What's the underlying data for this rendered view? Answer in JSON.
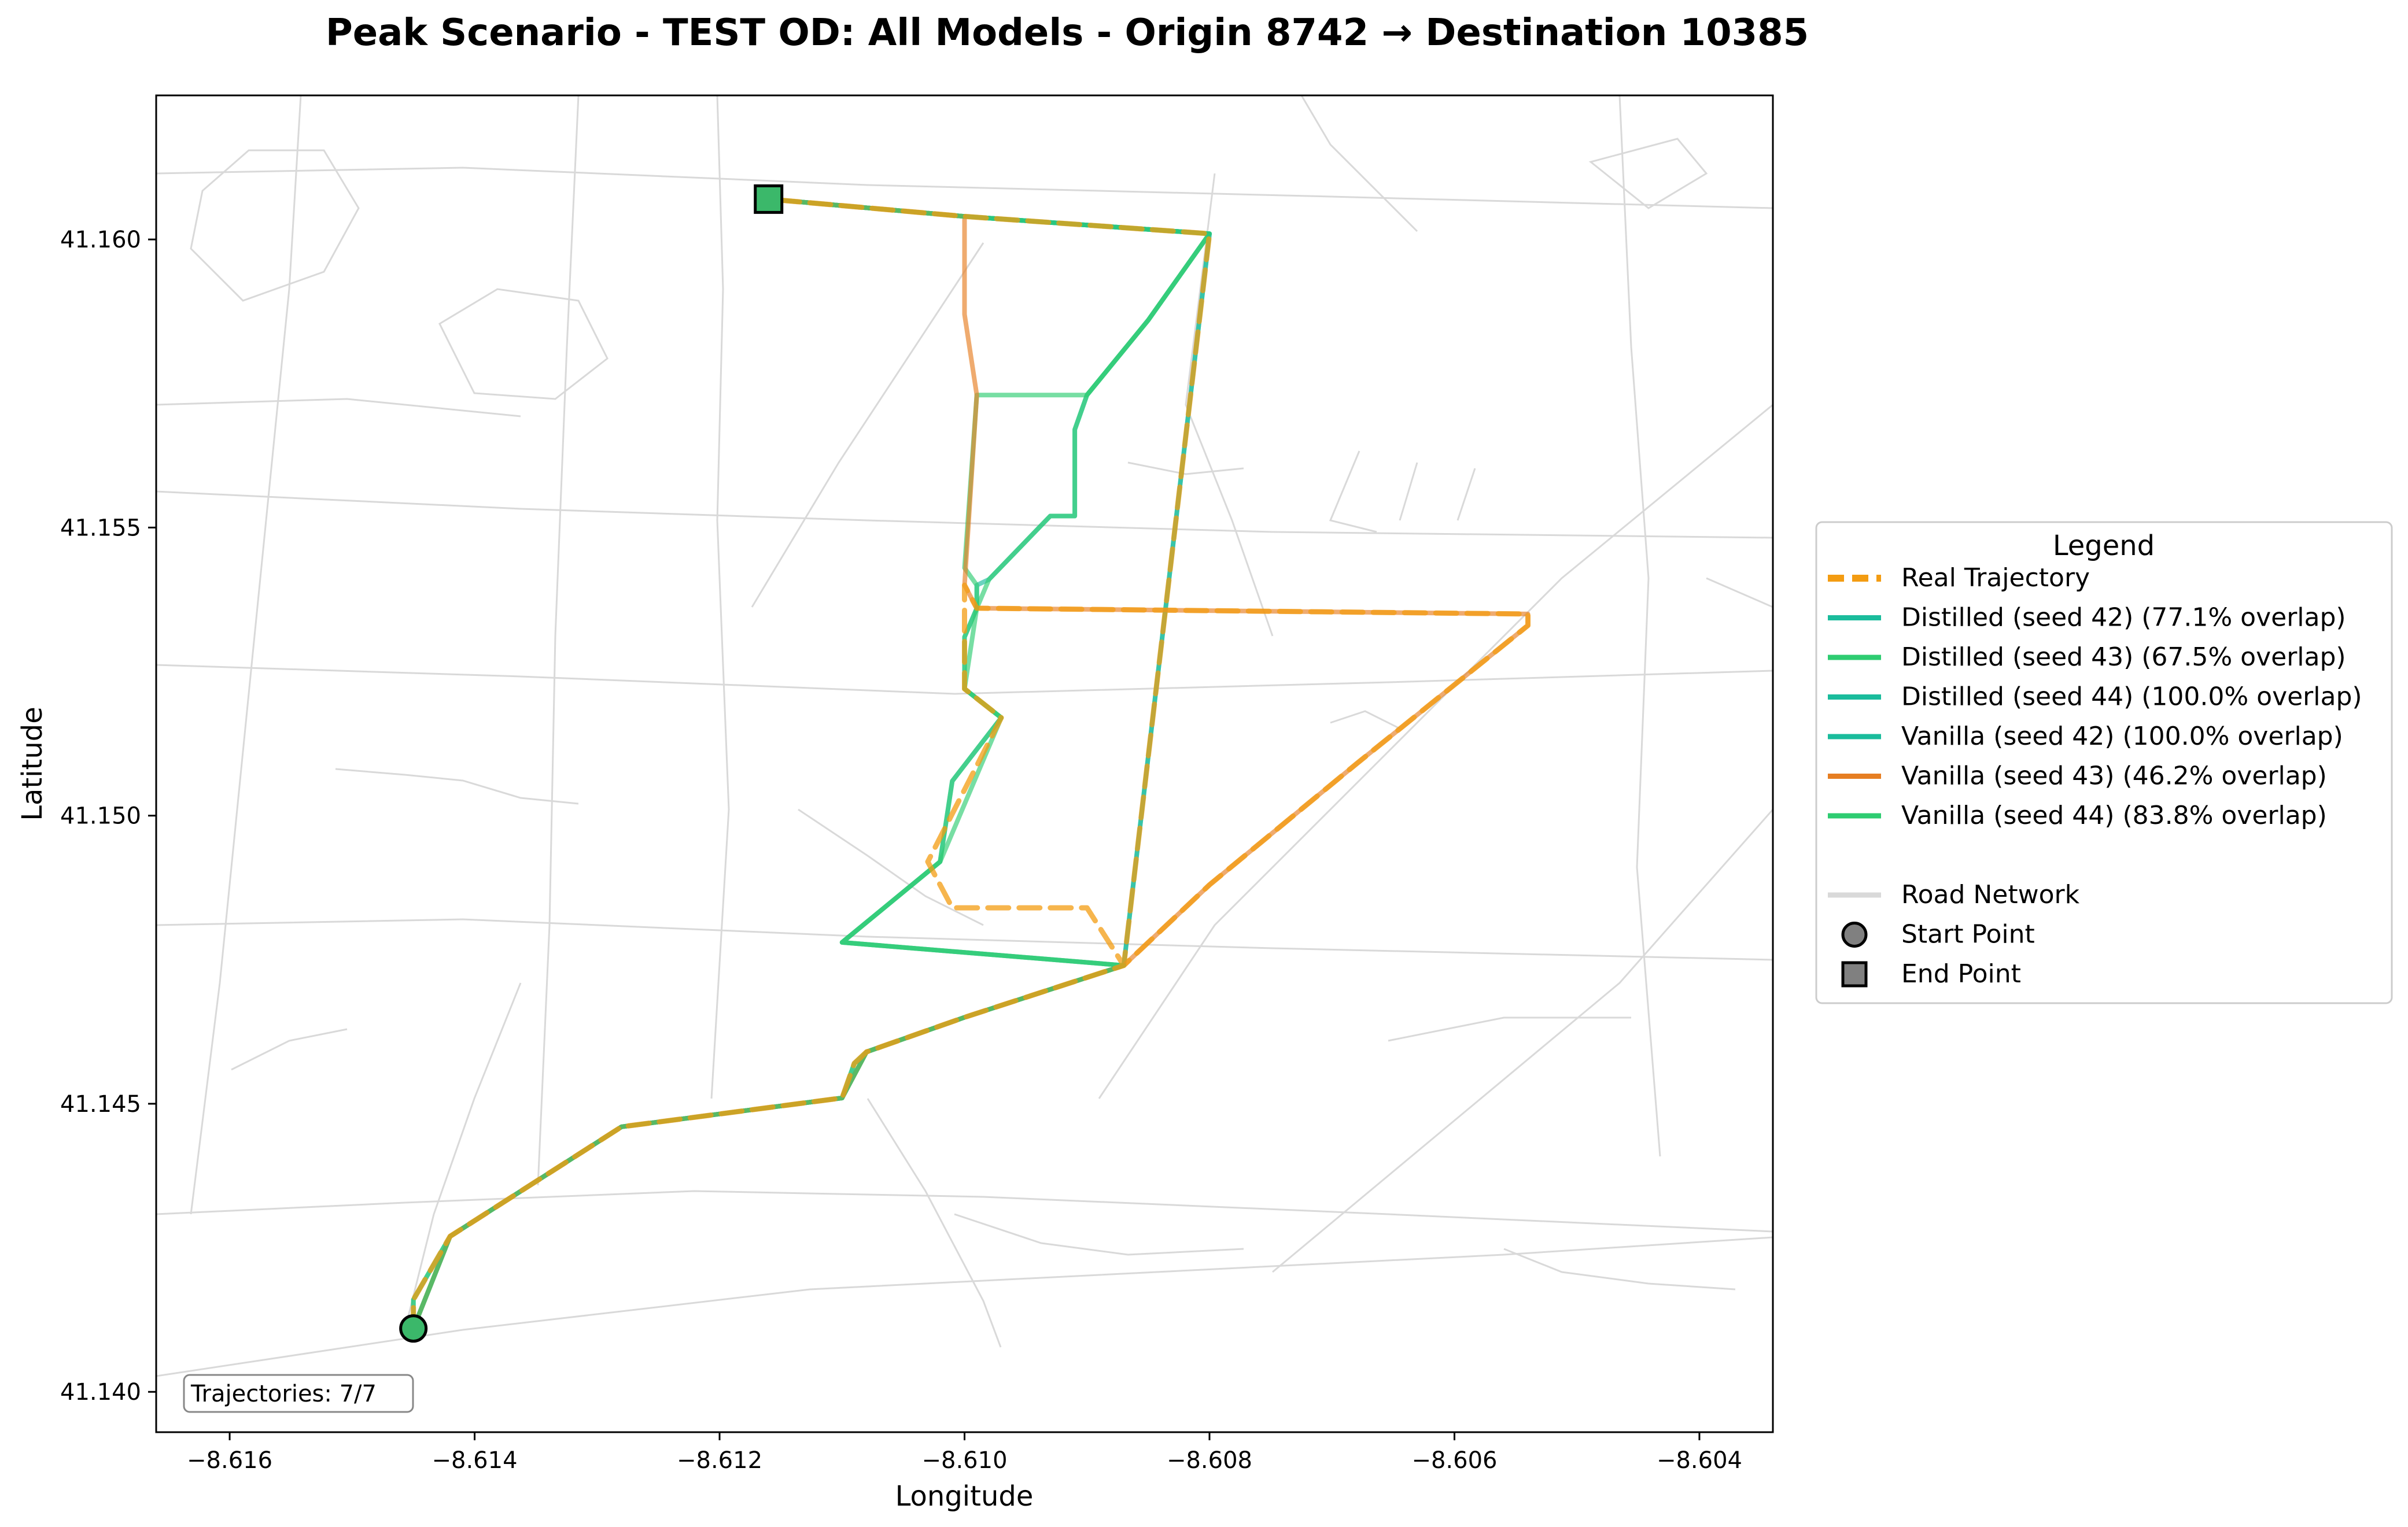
{
  "chart_data": {
    "type": "line",
    "title": "Peak Scenario - TEST OD: All Models - Origin 8742 → Destination 10385",
    "xlabel": "Longitude",
    "ylabel": "Latitude",
    "xlim": [
      -8.6166,
      -8.6034
    ],
    "ylim": [
      41.1393,
      41.1625
    ],
    "xticks": [
      -8.616,
      -8.614,
      -8.612,
      -8.61,
      -8.608,
      -8.606,
      -8.604
    ],
    "xtick_labels": [
      "−8.616",
      "−8.614",
      "−8.612",
      "−8.610",
      "−8.608",
      "−8.606",
      "−8.604"
    ],
    "yticks": [
      41.14,
      41.145,
      41.15,
      41.155,
      41.16
    ],
    "ytick_labels": [
      "41.140",
      "41.145",
      "41.150",
      "41.155",
      "41.160"
    ],
    "grid": false,
    "legend_placement": "right-outside",
    "legend_title": "Legend",
    "trajectory_count_label": "Trajectories: 7/7",
    "start": {
      "label": "Start Point",
      "x": -8.6145,
      "y": 41.1411
    },
    "end": {
      "label": "End Point",
      "x": -8.6116,
      "y": 41.1607
    },
    "road_label": "Road Network",
    "road_color": "#d9d9d9",
    "marker_color": "#3bb86a",
    "series": [
      {
        "name": "Real Trajectory",
        "color": "#f39c12",
        "dashed": true,
        "x": [
          -8.6145,
          -8.6145,
          -8.6142,
          -8.6128,
          -8.611,
          -8.6109,
          -8.6108,
          -8.61,
          -8.6087,
          -8.609,
          -8.6101,
          -8.6103,
          -8.6097,
          -8.61,
          -8.61,
          -8.61,
          -8.61,
          -8.6099,
          -8.6054,
          -8.6054,
          -8.6068,
          -8.608,
          -8.6087,
          -8.6087,
          -8.608,
          -8.61,
          -8.6116
        ],
        "y": [
          41.1411,
          41.1416,
          41.1427,
          41.1446,
          41.1451,
          41.1457,
          41.1459,
          41.1465,
          41.1474,
          41.1484,
          41.1484,
          41.1492,
          41.1517,
          41.1522,
          41.1531,
          41.1536,
          41.154,
          41.1536,
          41.1535,
          41.1533,
          41.1509,
          41.1488,
          41.1474,
          41.1474,
          41.1601,
          41.1604,
          41.1607
        ]
      },
      {
        "name": "Distilled (seed 42) (77.1% overlap)",
        "color": "#1abc9c",
        "x": [
          -8.6145,
          -8.6145,
          -8.6142,
          -8.6128,
          -8.611,
          -8.6109,
          -8.6108,
          -8.61,
          -8.6087,
          -8.611,
          -8.6106,
          -8.6102,
          -8.6101,
          -8.6097,
          -8.61,
          -8.61,
          -8.6099,
          -8.6099,
          -8.6098,
          -8.6093,
          -8.6091,
          -8.6091,
          -8.609,
          -8.6085,
          -8.608,
          -8.61,
          -8.6116
        ],
        "y": [
          41.1411,
          41.1416,
          41.1427,
          41.1446,
          41.1451,
          41.1457,
          41.1459,
          41.1465,
          41.1474,
          41.1478,
          41.1485,
          41.1492,
          41.1506,
          41.1517,
          41.1522,
          41.1531,
          41.1536,
          41.154,
          41.1541,
          41.1552,
          41.1552,
          41.1567,
          41.1573,
          41.1586,
          41.1601,
          41.1604,
          41.1607
        ]
      },
      {
        "name": "Distilled (seed 43) (67.5% overlap)",
        "color": "#2ecc71",
        "x": [
          -8.6145,
          -8.6145,
          -8.6142,
          -8.6128,
          -8.611,
          -8.6109,
          -8.6108,
          -8.61,
          -8.6087,
          -8.611,
          -8.6106,
          -8.6102,
          -8.6101,
          -8.6097,
          -8.61,
          -8.61,
          -8.6099,
          -8.6099,
          -8.61,
          -8.6099,
          -8.609,
          -8.6085,
          -8.608,
          -8.61,
          -8.6116
        ],
        "y": [
          41.1411,
          41.1416,
          41.1427,
          41.1446,
          41.1451,
          41.1457,
          41.1459,
          41.1465,
          41.1474,
          41.1478,
          41.1485,
          41.1492,
          41.1506,
          41.1517,
          41.1522,
          41.1531,
          41.1536,
          41.154,
          41.1543,
          41.1573,
          41.1573,
          41.1586,
          41.1601,
          41.1604,
          41.1607
        ]
      },
      {
        "name": "Distilled (seed 44) (100.0% overlap)",
        "color": "#1abc9c",
        "x": [
          -8.6145,
          -8.6142,
          -8.6128,
          -8.611,
          -8.6108,
          -8.61,
          -8.6087,
          -8.608,
          -8.61,
          -8.6116
        ],
        "y": [
          41.1411,
          41.1427,
          41.1446,
          41.1451,
          41.1459,
          41.1465,
          41.1474,
          41.1601,
          41.1604,
          41.1607
        ]
      },
      {
        "name": "Vanilla (seed 42) (100.0% overlap)",
        "color": "#1abc9c",
        "x": [
          -8.6145,
          -8.6142,
          -8.6128,
          -8.611,
          -8.6108,
          -8.61,
          -8.6087,
          -8.608,
          -8.61,
          -8.6116
        ],
        "y": [
          41.1411,
          41.1427,
          41.1446,
          41.1451,
          41.1459,
          41.1465,
          41.1474,
          41.1601,
          41.1604,
          41.1607
        ]
      },
      {
        "name": "Vanilla (seed 43) (46.2% overlap)",
        "color": "#e67e22",
        "x": [
          -8.6145,
          -8.6142,
          -8.6128,
          -8.611,
          -8.6108,
          -8.61,
          -8.6087,
          -8.608,
          -8.6068,
          -8.6054,
          -8.6054,
          -8.6099,
          -8.61,
          -8.6099,
          -8.61,
          -8.61,
          -8.6116
        ],
        "y": [
          41.1411,
          41.1427,
          41.1446,
          41.1451,
          41.1459,
          41.1465,
          41.1474,
          41.1488,
          41.1509,
          41.1533,
          41.1535,
          41.1536,
          41.154,
          41.1573,
          41.1587,
          41.1604,
          41.1607
        ]
      },
      {
        "name": "Vanilla (seed 44) (83.8% overlap)",
        "color": "#2ecc71",
        "x": [
          -8.6145,
          -8.6142,
          -8.6128,
          -8.611,
          -8.6108,
          -8.61,
          -8.6087,
          -8.611,
          -8.6102,
          -8.6097,
          -8.61,
          -8.6099,
          -8.6098,
          -8.6093,
          -8.6091,
          -8.6091,
          -8.609,
          -8.6085,
          -8.608,
          -8.61,
          -8.6116
        ],
        "y": [
          41.1411,
          41.1427,
          41.1446,
          41.1451,
          41.1459,
          41.1465,
          41.1474,
          41.1478,
          41.1492,
          41.1517,
          41.1522,
          41.1536,
          41.1541,
          41.1552,
          41.1552,
          41.1567,
          41.1573,
          41.1586,
          41.1601,
          41.1604,
          41.1607
        ]
      }
    ]
  }
}
